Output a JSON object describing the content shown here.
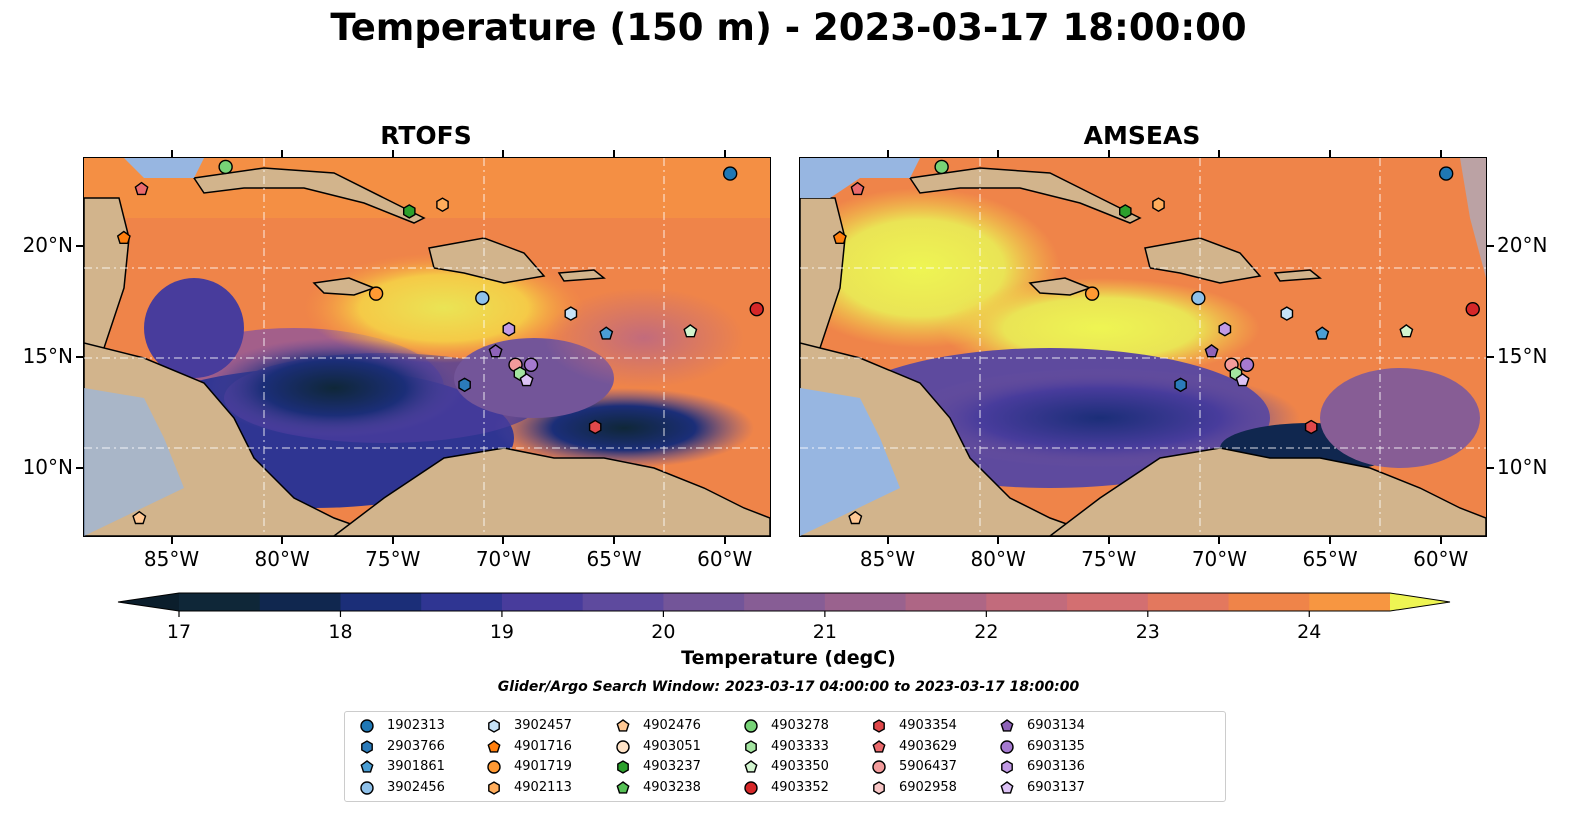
{
  "title": "Temperature (150 m) - 2023-03-17 18:00:00",
  "panels": [
    {
      "id": "rtofs",
      "title": "RTOFS"
    },
    {
      "id": "amseas",
      "title": "AMSEAS"
    }
  ],
  "map_extent": {
    "lon": [
      -89,
      -58
    ],
    "lat": [
      7,
      24
    ]
  },
  "lon_ticks": [
    {
      "value": -85,
      "label": "85°W"
    },
    {
      "value": -80,
      "label": "80°W"
    },
    {
      "value": -75,
      "label": "75°W"
    },
    {
      "value": -70,
      "label": "70°W"
    },
    {
      "value": -65,
      "label": "65°W"
    },
    {
      "value": -60,
      "label": "60°W"
    }
  ],
  "lat_ticks": [
    {
      "value": 10,
      "label": "10°N"
    },
    {
      "value": 15,
      "label": "15°N"
    },
    {
      "value": 20,
      "label": "20°N"
    }
  ],
  "colorbar": {
    "label": "Temperature (degC)",
    "min": 17,
    "max": 24.5,
    "step": 0.5,
    "ticks": [
      {
        "value": 17,
        "label": "17"
      },
      {
        "value": 18,
        "label": "18"
      },
      {
        "value": 19,
        "label": "19"
      },
      {
        "value": 20,
        "label": "20"
      },
      {
        "value": 21,
        "label": "21"
      },
      {
        "value": 22,
        "label": "22"
      },
      {
        "value": 23,
        "label": "23"
      },
      {
        "value": 24,
        "label": "24"
      }
    ],
    "colors": [
      "#0f2738",
      "#10274f",
      "#1b2e78",
      "#2f3592",
      "#483c9c",
      "#5e4a9e",
      "#735599",
      "#875d95",
      "#9a628e",
      "#ae6685",
      "#c26b7c",
      "#d36f71",
      "#e3785e",
      "#ef8449",
      "#f79641",
      "#f8ae42",
      "#f5ca47",
      "#eae455"
    ],
    "under_color": "#0b1e2c",
    "over_color": "#eef553"
  },
  "search_window": "Glider/Argo Search Window: 2023-03-17 04:00:00 to 2023-03-17 18:00:00",
  "colors": {
    "land": "#d2b48c",
    "ocean_shallow": "#97b6e1",
    "coast": "#000000"
  },
  "legend": [
    {
      "id": "1902313",
      "marker": "circle",
      "color": "#1f77b4"
    },
    {
      "id": "2903766",
      "marker": "hexagon",
      "color": "#2b7bba"
    },
    {
      "id": "3901861",
      "marker": "pentagon",
      "color": "#4a9ed4"
    },
    {
      "id": "3902456",
      "marker": "circle",
      "color": "#8fc1ea"
    },
    {
      "id": "3902457",
      "marker": "hexagon",
      "color": "#c6e2f7"
    },
    {
      "id": "4901716",
      "marker": "pentagon",
      "color": "#ff7f0e"
    },
    {
      "id": "4901719",
      "marker": "circle",
      "color": "#ff9933"
    },
    {
      "id": "4902113",
      "marker": "hexagon",
      "color": "#ffad5c"
    },
    {
      "id": "4902476",
      "marker": "pentagon",
      "color": "#ffc894"
    },
    {
      "id": "4903051",
      "marker": "circle",
      "color": "#ffe3c7"
    },
    {
      "id": "4903237",
      "marker": "hexagon",
      "color": "#2ca02c"
    },
    {
      "id": "4903238",
      "marker": "pentagon",
      "color": "#56c156"
    },
    {
      "id": "4903278",
      "marker": "circle",
      "color": "#77d377"
    },
    {
      "id": "4903333",
      "marker": "hexagon",
      "color": "#a3e4a0"
    },
    {
      "id": "4903350",
      "marker": "pentagon",
      "color": "#d2f5cf"
    },
    {
      "id": "4903352",
      "marker": "circle",
      "color": "#d62728"
    },
    {
      "id": "4903354",
      "marker": "hexagon",
      "color": "#e0484a"
    },
    {
      "id": "4903629",
      "marker": "pentagon",
      "color": "#ea6a6c"
    },
    {
      "id": "5906437",
      "marker": "circle",
      "color": "#f29b9b"
    },
    {
      "id": "6902958",
      "marker": "hexagon",
      "color": "#f8c6c6"
    },
    {
      "id": "6903134",
      "marker": "pentagon",
      "color": "#8e63b8"
    },
    {
      "id": "6903135",
      "marker": "circle",
      "color": "#a57ad0"
    },
    {
      "id": "6903136",
      "marker": "hexagon",
      "color": "#c19ae5"
    },
    {
      "id": "6903137",
      "marker": "pentagon",
      "color": "#dcc2f5"
    }
  ],
  "floats": [
    {
      "id": "1902313",
      "lon": -59.8,
      "lat": 23.3
    },
    {
      "id": "4903278",
      "lon": -82.6,
      "lat": 23.6
    },
    {
      "id": "4903629",
      "lon": -86.4,
      "lat": 22.6
    },
    {
      "id": "4901716",
      "lon": -87.2,
      "lat": 20.4
    },
    {
      "id": "4903237",
      "lon": -74.3,
      "lat": 21.6
    },
    {
      "id": "4902113",
      "lon": -72.8,
      "lat": 21.9
    },
    {
      "id": "4901719",
      "lon": -75.8,
      "lat": 17.9
    },
    {
      "id": "3902456",
      "lon": -71.0,
      "lat": 17.7
    },
    {
      "id": "3902457",
      "lon": -67.0,
      "lat": 17.0
    },
    {
      "id": "4903352",
      "lon": -58.6,
      "lat": 17.2
    },
    {
      "id": "3901861",
      "lon": -65.4,
      "lat": 16.1
    },
    {
      "id": "4903350",
      "lon": -61.6,
      "lat": 16.2
    },
    {
      "id": "6903136",
      "lon": -69.8,
      "lat": 16.3
    },
    {
      "id": "6903134",
      "lon": -70.4,
      "lat": 15.3
    },
    {
      "id": "5906437",
      "lon": -69.5,
      "lat": 14.7
    },
    {
      "id": "6903135",
      "lon": -68.8,
      "lat": 14.7
    },
    {
      "id": "4903333",
      "lon": -69.3,
      "lat": 14.3
    },
    {
      "id": "6903137",
      "lon": -69.0,
      "lat": 14.0
    },
    {
      "id": "2903766",
      "lon": -71.8,
      "lat": 13.8
    },
    {
      "id": "4903354",
      "lon": -65.9,
      "lat": 11.9
    },
    {
      "id": "4902476",
      "lon": -86.5,
      "lat": 7.8
    }
  ]
}
